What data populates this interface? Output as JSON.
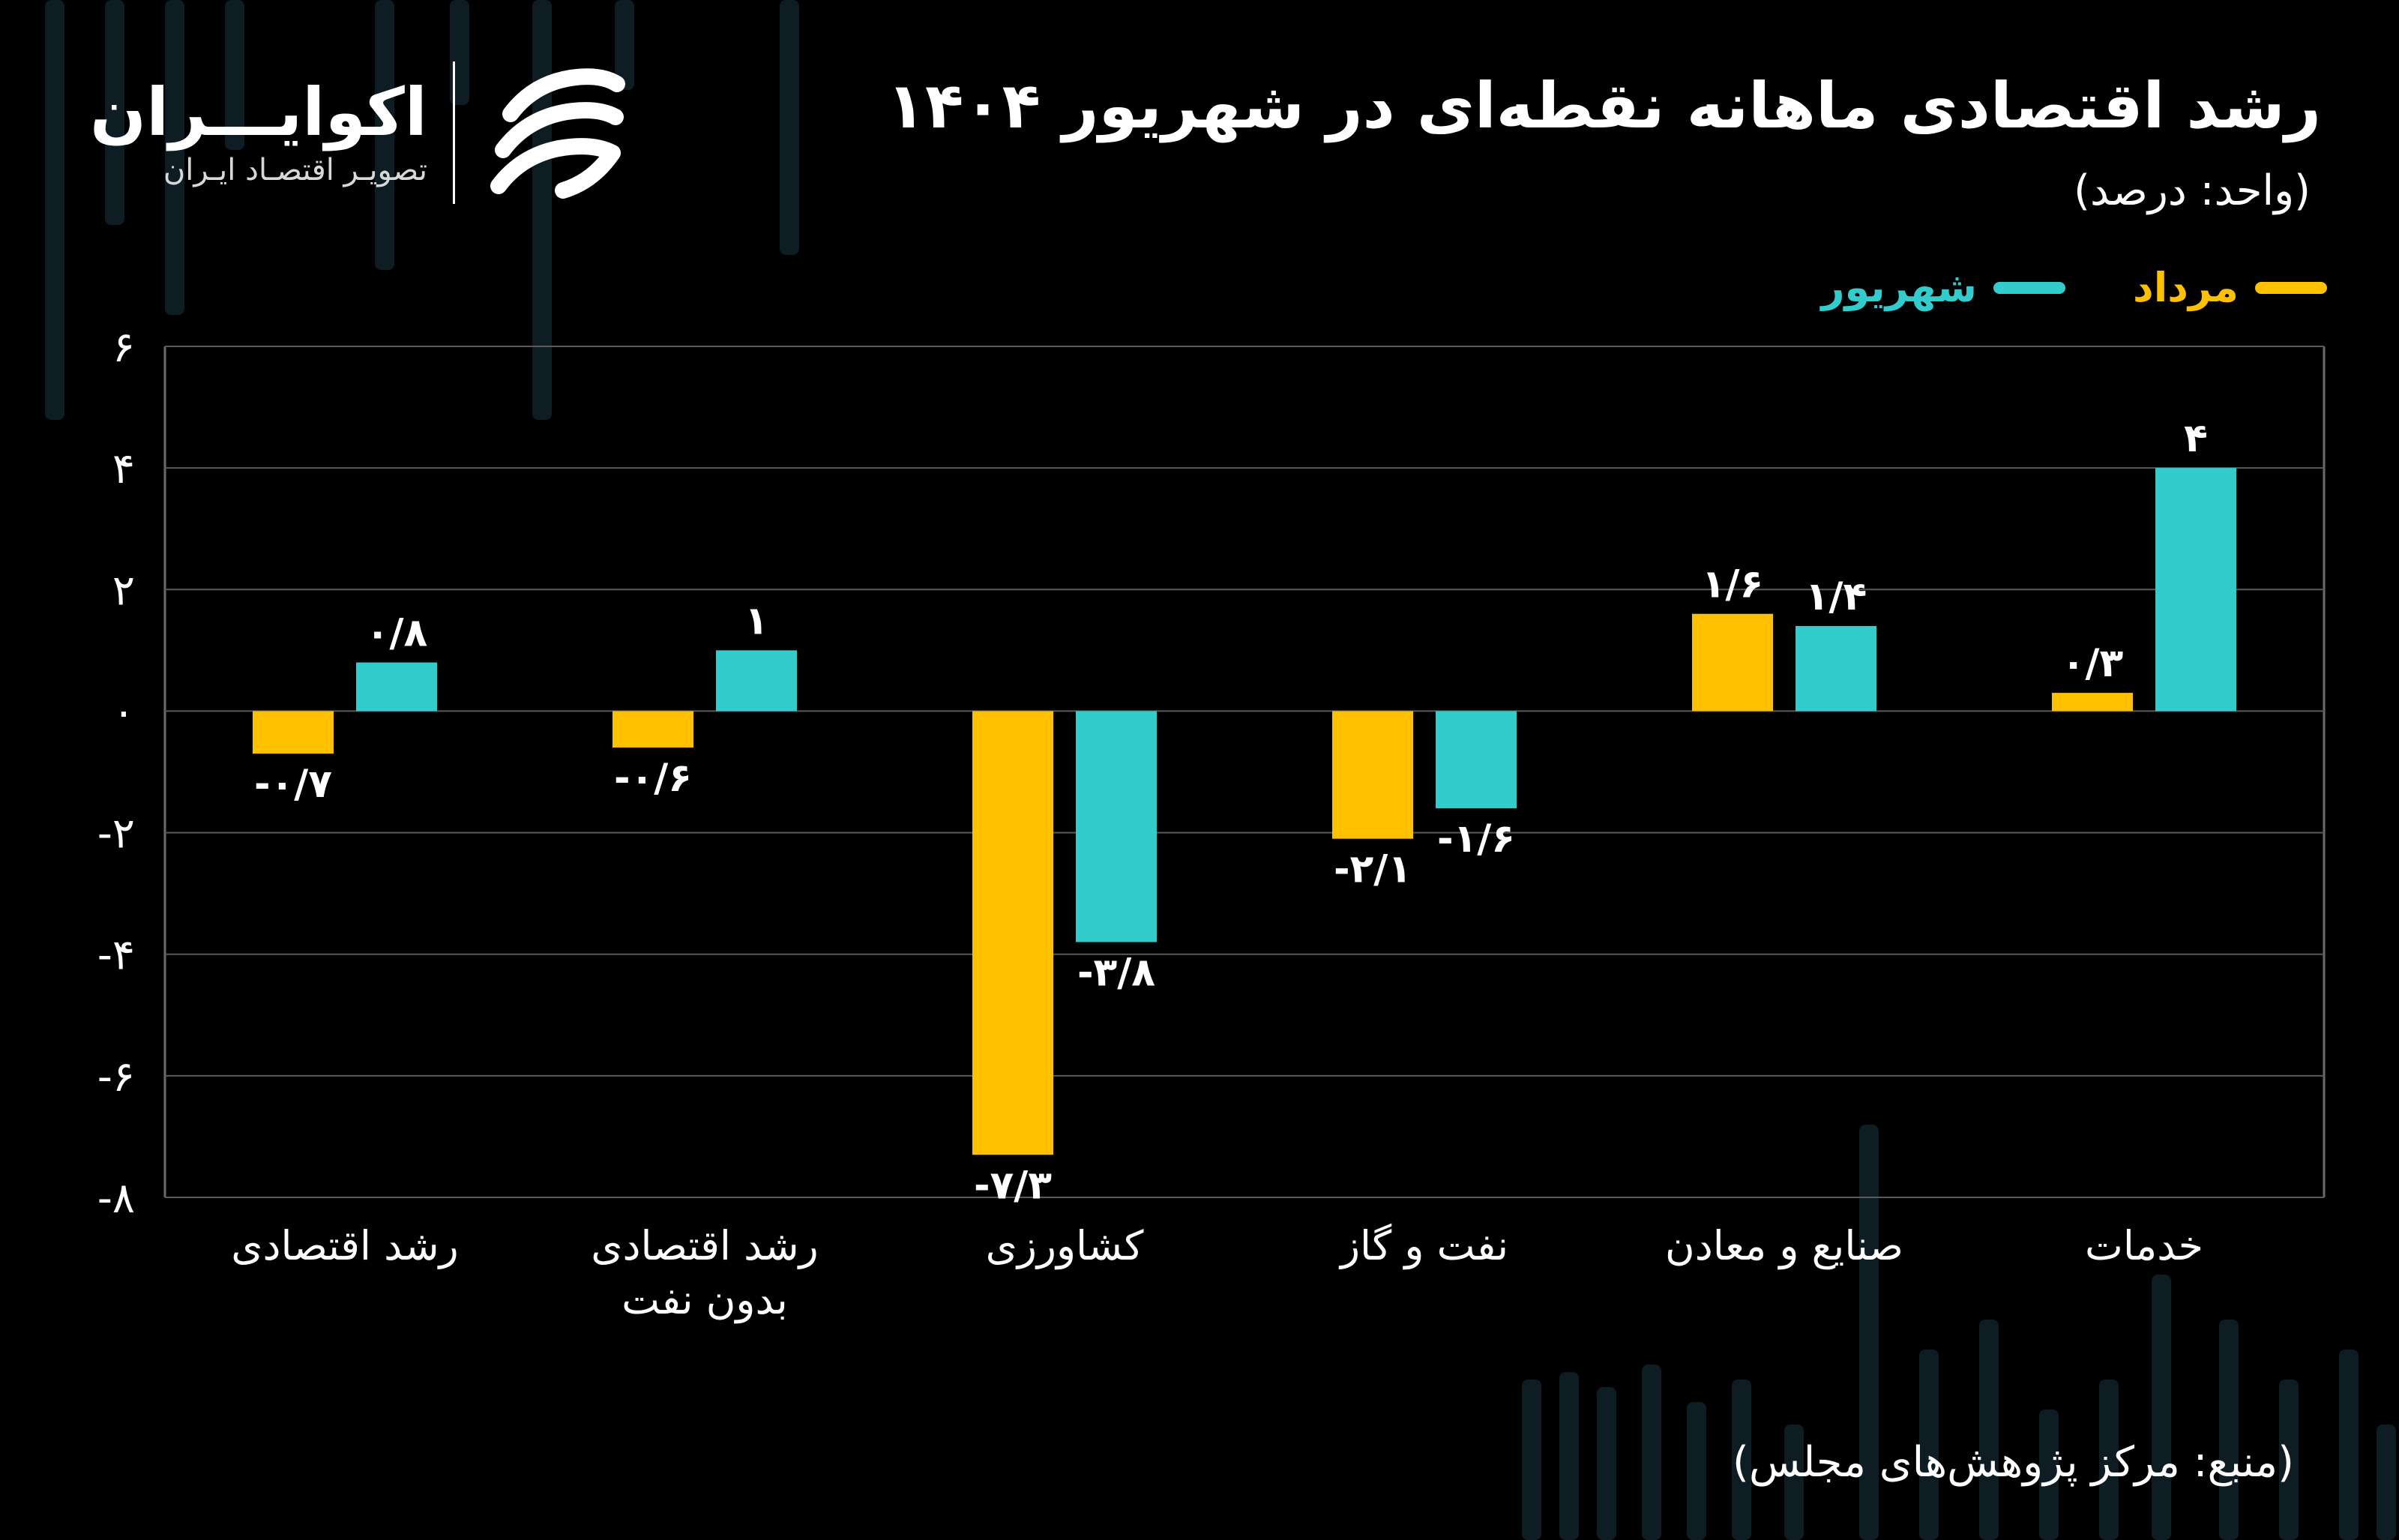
{
  "header": {
    "title": "رشد اقتصادی ماهانه نقطه‌ای در شهریور ۱۴۰۴",
    "unit": "(واحد: درصد)"
  },
  "logo": {
    "name": "اکوایـــران",
    "tagline": "تصویـر اقتصـاد ایـران"
  },
  "footer": {
    "source": "(منبع: مرکز پژوهش‌های مجلس)"
  },
  "colors": {
    "background": "#000000",
    "mordad": "#FFC000",
    "shahrivar": "#33CCCC",
    "grid": "#5a5a5a",
    "text": "#FFFFFF"
  },
  "chart_data": {
    "type": "bar",
    "title": "رشد اقتصادی ماهانه نقطه‌ای در شهریور ۱۴۰۴",
    "xlabel": "",
    "ylabel": "",
    "ylim": [
      -8,
      6
    ],
    "yticks": [
      6,
      4,
      2,
      0,
      -2,
      -4,
      -6,
      -8
    ],
    "ytick_labels": [
      "۶",
      "۴",
      "۲",
      "۰",
      "-۲",
      "-۴",
      "-۶",
      "-۸"
    ],
    "grid": true,
    "legend_position": "top-right",
    "categories": [
      [
        "رشد اقتصادی"
      ],
      [
        "رشد اقتصادی",
        "بدون نفت"
      ],
      [
        "کشاورزی"
      ],
      [
        "نفت و گاز"
      ],
      [
        "صنایع و معادن"
      ],
      [
        "خدمات"
      ]
    ],
    "series": [
      {
        "name": "مرداد",
        "color": "#FFC000",
        "values": [
          -0.7,
          -0.6,
          -7.3,
          -2.1,
          1.6,
          0.3
        ],
        "labels": [
          "-۰/۷",
          "-۰/۶",
          "-۷/۳",
          "-۲/۱",
          "۱/۶",
          "۰/۳"
        ]
      },
      {
        "name": "شهریور",
        "color": "#33CCCC",
        "values": [
          0.8,
          1,
          -3.8,
          -1.6,
          1.4,
          4
        ],
        "labels": [
          "۰/۸",
          "۱",
          "-۳/۸",
          "-۱/۶",
          "۱/۴",
          "۴"
        ]
      }
    ]
  }
}
